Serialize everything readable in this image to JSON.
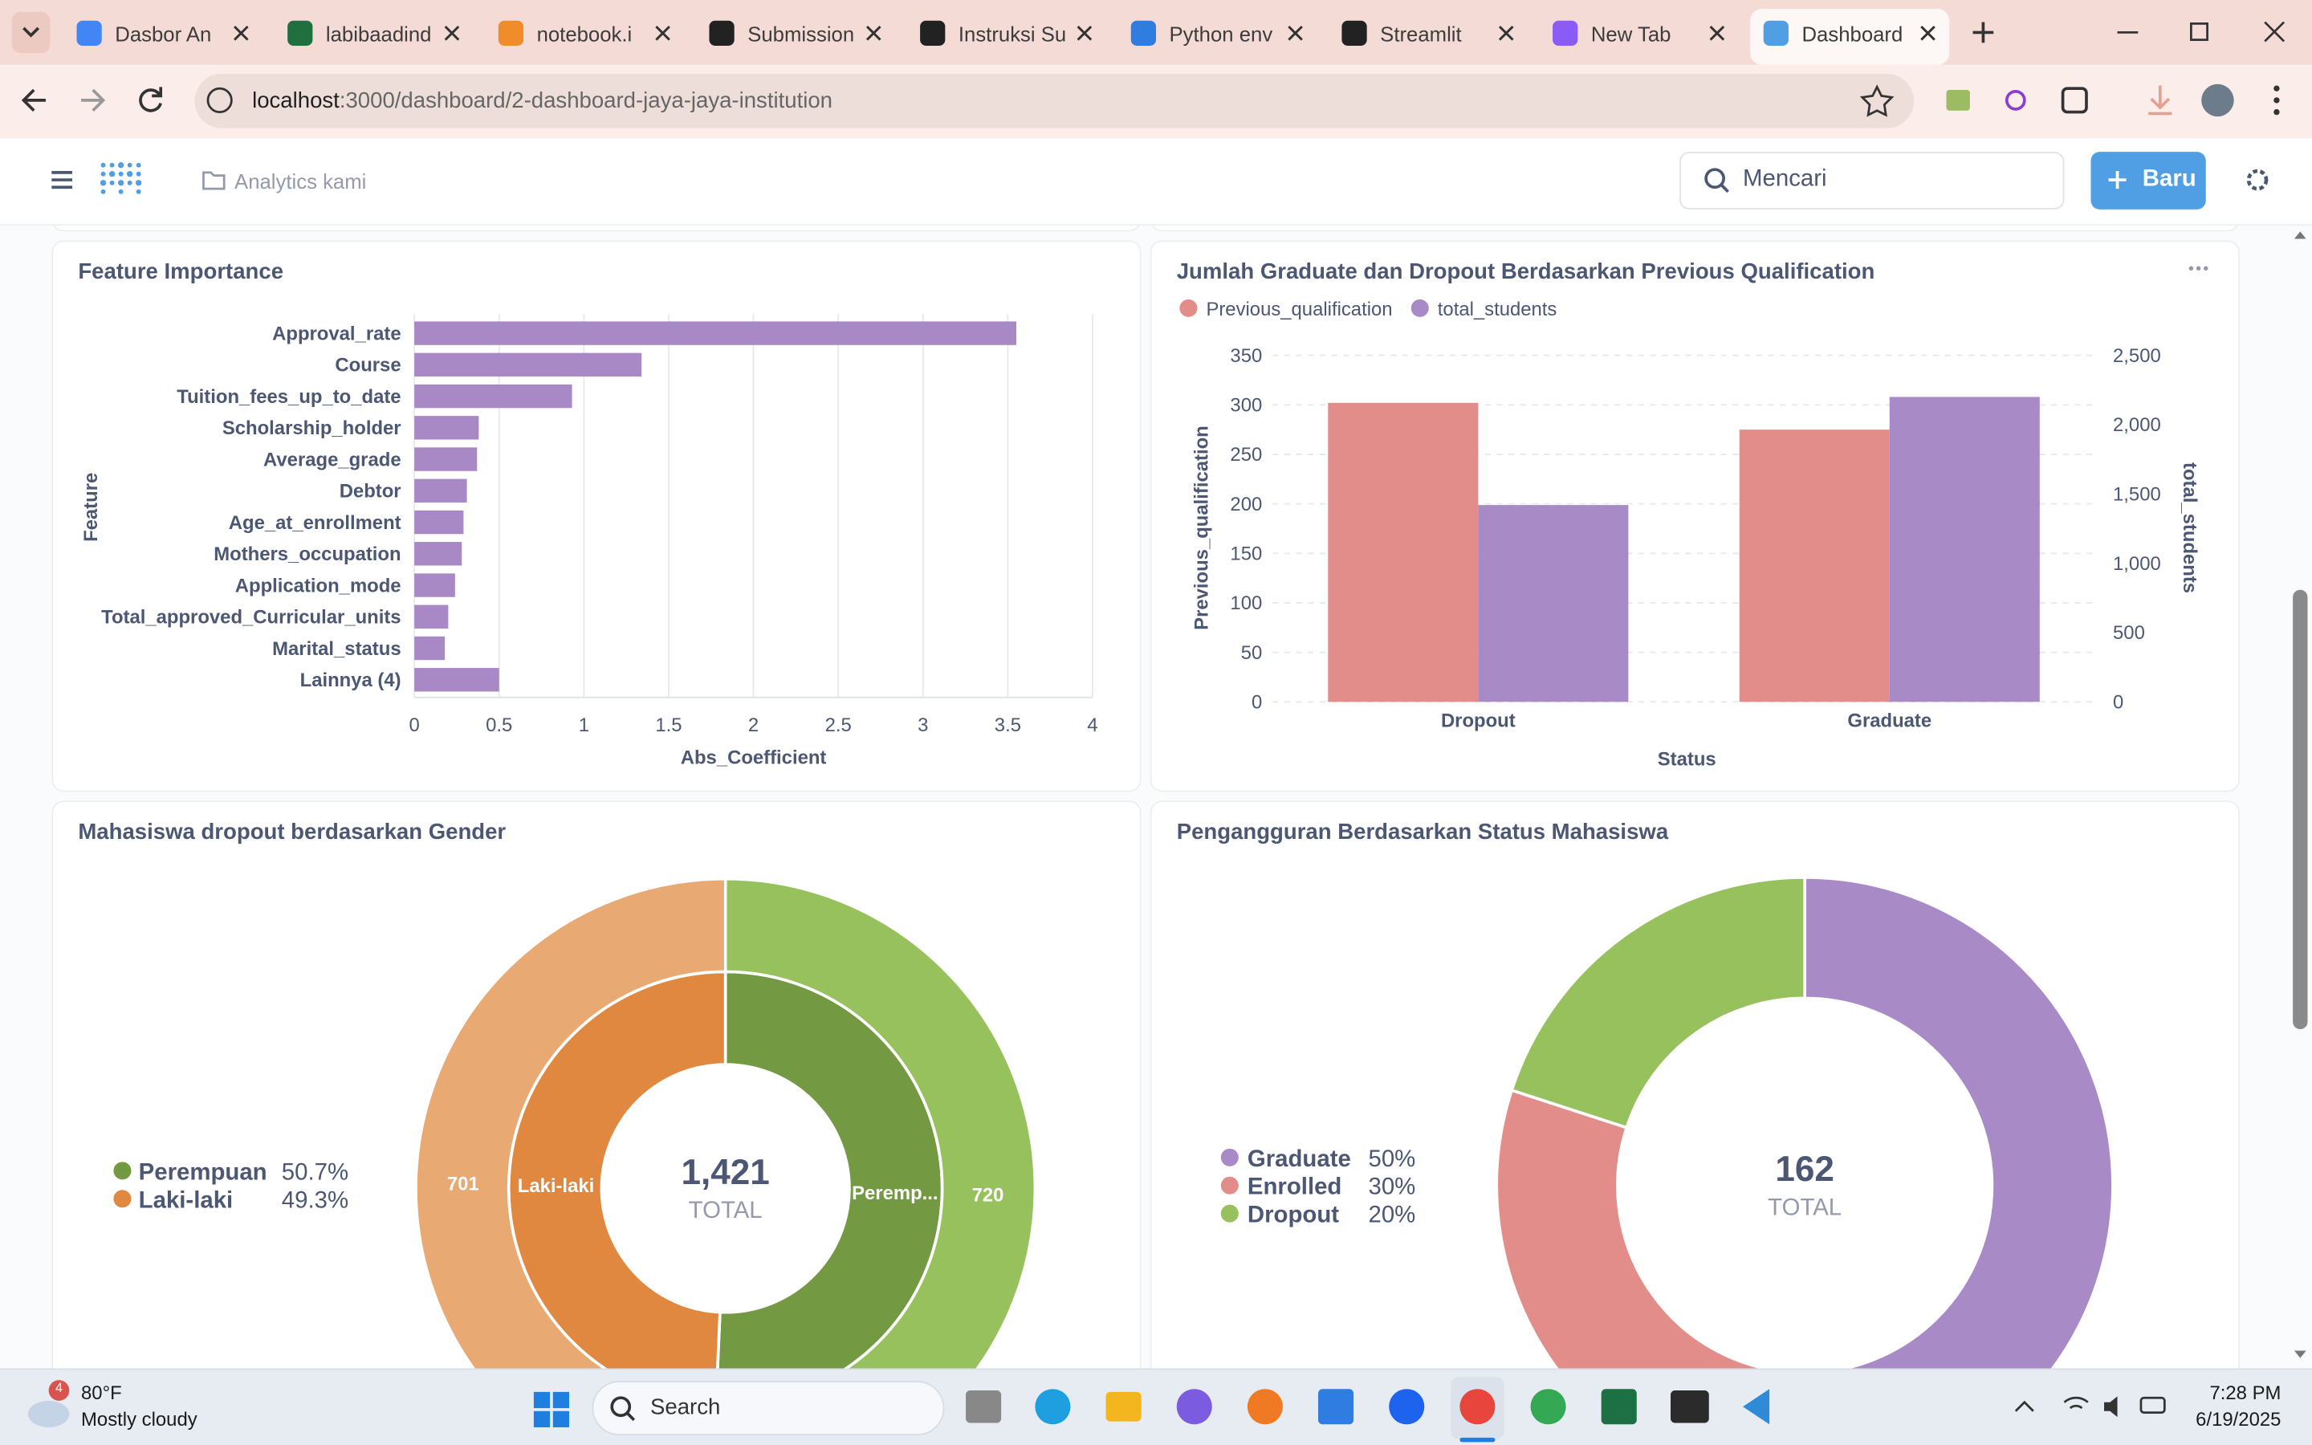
{
  "browser": {
    "tabs": [
      "Dasbor An",
      "labibaadind",
      "notebook.i",
      "Submission",
      "Instruksi Su",
      "Python env",
      "Streamlit",
      "New Tab",
      "Dashboard"
    ],
    "url_host": "localhost",
    "url_path": ":3000/dashboard/2-dashboard-jaya-jaya-institution"
  },
  "app": {
    "breadcrumb": "Analytics kami",
    "search": "Mencari",
    "new_button": "Baru"
  },
  "chart_data": [
    {
      "type": "hbar",
      "title": "Feature Importance",
      "xlabel": "Abs_Coefficient",
      "ylabel": "Feature",
      "color": "#a989c5",
      "categories": [
        "Approval_rate",
        "Course",
        "Tuition_fees_up_to_date",
        "Scholarship_holder",
        "Average_grade",
        "Debtor",
        "Age_at_enrollment",
        "Mothers_occupation",
        "Application_mode",
        "Total_approved_Curricular_units",
        "Marital_status",
        "Lainnya (4)"
      ],
      "values": [
        3.55,
        1.34,
        0.93,
        0.38,
        0.37,
        0.31,
        0.29,
        0.28,
        0.24,
        0.2,
        0.18,
        0.5
      ],
      "xlim": [
        0,
        4
      ],
      "xticks": [
        0,
        0.5,
        1,
        1.5,
        2,
        2.5,
        3,
        3.5,
        4
      ],
      "grid": true
    },
    {
      "type": "bar",
      "title": "Jumlah Graduate dan Dropout Berdasarkan Previous Qualification",
      "xlabel": "Status",
      "ylabel": "Previous_qualification",
      "y2label": "total_students",
      "categories": [
        "Dropout",
        "Graduate"
      ],
      "series": [
        {
          "name": "Previous_qualification",
          "color": "#e38d8a",
          "values": [
            302,
            275
          ]
        },
        {
          "name": "total_students",
          "color": "#a88bc6",
          "values": [
            1420,
            2200
          ],
          "axis": "y2"
        }
      ],
      "ylim": [
        0,
        350
      ],
      "yticks": [
        0,
        50,
        100,
        150,
        200,
        250,
        300,
        350
      ],
      "y2lim": [
        0,
        2500
      ],
      "y2ticks": [
        0,
        500,
        {
          "value": 1000,
          "label": "1,000"
        },
        {
          "value": 1500,
          "label": "1,500"
        },
        {
          "value": 2000,
          "label": "2,000"
        },
        {
          "value": 2500,
          "label": "2,500"
        }
      ],
      "grid": true,
      "legend": "top-left"
    },
    {
      "type": "donut",
      "title": "Mahasiswa dropout berdasarkan Gender",
      "categories": [
        "Perempuan",
        "Laki-laki"
      ],
      "values": [
        50.7,
        49.3
      ],
      "value_labels": [
        "50.7%",
        "49.3%"
      ],
      "colors": [
        "#739a42",
        "#e0883f"
      ],
      "counts": [
        720,
        701
      ],
      "outer_colors": [
        "#97c15c",
        "#e8a972"
      ],
      "ring_labels": [
        "Peremp...",
        "Laki-laki"
      ],
      "total": {
        "value": 1421,
        "label": "1,421"
      },
      "total_caption": "TOTAL",
      "legend": "left"
    },
    {
      "type": "donut",
      "title": "Pengangguran Berdasarkan Status Mahasiswa",
      "categories": [
        "Graduate",
        "Enrolled",
        "Dropout"
      ],
      "values": [
        50,
        30,
        20
      ],
      "value_labels": [
        "50%",
        "30%",
        "20%"
      ],
      "colors": [
        "#a88bc6",
        "#e38d8a",
        "#97c15c"
      ],
      "total": {
        "value": 162,
        "label": "162"
      },
      "total_caption": "TOTAL",
      "legend": "left"
    }
  ],
  "taskbar": {
    "weather_badge": "4",
    "weather_temp": "80°F",
    "weather_desc": "Mostly cloudy",
    "search": "Search",
    "time": "7:28 PM",
    "date": "6/19/2025"
  }
}
